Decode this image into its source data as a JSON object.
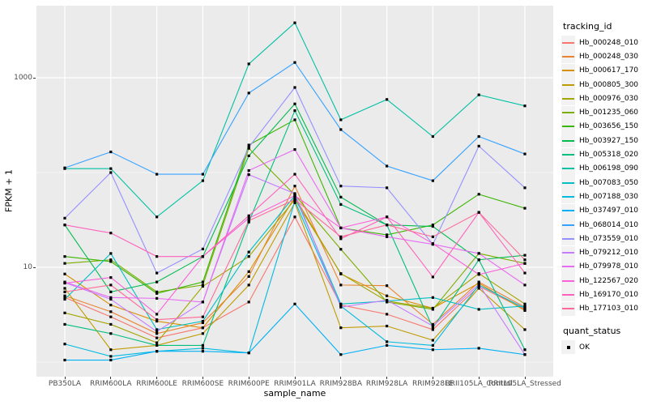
{
  "chart_data": {
    "type": "line",
    "title": "",
    "xlabel": "sample_name",
    "ylabel": "FPKM + 1",
    "y_scale": "log10",
    "y_axis_tick_labels": [
      "10",
      "1000"
    ],
    "y_axis_tick_values": [
      10,
      1000
    ],
    "y_gridlines_major": [
      10,
      1000
    ],
    "y_gridlines_minor": [
      1,
      100
    ],
    "ylim": [
      0.7,
      5750
    ],
    "grid": true,
    "legend_position": "right",
    "categories": [
      "PB350LA",
      "RRIM600LA",
      "RRIM600LE",
      "RRIM600SE",
      "RRIM600PE",
      "RRIM901LA",
      "RRIM928BA",
      "RRIM928LA",
      "RRIM928LE",
      "RRII105LA_Control",
      "RRII105LA_Stressed"
    ],
    "series": [
      {
        "name": "Hb_000248_010",
        "color": "#F8766D",
        "values": [
          4.8,
          3.0,
          1.8,
          2.3,
          4.3,
          34,
          4.0,
          3.2,
          2.2,
          6.3,
          3.6
        ]
      },
      {
        "name": "Hb_000248_030",
        "color": "#EA8331",
        "values": [
          5.0,
          3.4,
          2.0,
          2.6,
          8.0,
          72,
          6.5,
          6.4,
          2.5,
          7.0,
          3.8
        ]
      },
      {
        "name": "Hb_000617_170",
        "color": "#D89000",
        "values": [
          8.5,
          4.0,
          2.7,
          2.3,
          9.0,
          55,
          8.5,
          5.0,
          3.7,
          6.8,
          3.5
        ]
      },
      {
        "name": "Hb_000805_300",
        "color": "#C09B00",
        "values": [
          6.0,
          1.35,
          1.5,
          2.0,
          6.5,
          48,
          2.3,
          2.4,
          1.7,
          6.0,
          2.2
        ]
      },
      {
        "name": "Hb_000976_030",
        "color": "#A3A500",
        "values": [
          3.3,
          2.5,
          1.6,
          6.3,
          13,
          52,
          8.6,
          4.4,
          3.7,
          8.6,
          4.1
        ]
      },
      {
        "name": "Hb_001235_060",
        "color": "#7CAE00",
        "values": [
          11,
          12,
          5.5,
          6.5,
          180,
          58,
          15.5,
          4.3,
          3.6,
          14,
          11
        ]
      },
      {
        "name": "Hb_003656_150",
        "color": "#39B600",
        "values": [
          13,
          11.5,
          5.3,
          7.0,
          195,
          360,
          26,
          22,
          28,
          59,
          42
        ]
      },
      {
        "name": "Hb_003927_150",
        "color": "#00BB4E",
        "values": [
          28,
          5.5,
          7.0,
          13,
          150,
          530,
          55,
          28,
          27,
          12,
          13.4
        ]
      },
      {
        "name": "Hb_005318_020",
        "color": "#00BF7D",
        "values": [
          2.5,
          2.0,
          1.5,
          1.5,
          30,
          450,
          46,
          28,
          2.3,
          12,
          1.35
        ]
      },
      {
        "name": "Hb_006198_090",
        "color": "#00C1A3",
        "values": [
          110,
          110,
          34,
          82,
          1400,
          3800,
          360,
          590,
          240,
          660,
          505
        ]
      },
      {
        "name": "Hb_007083_050",
        "color": "#00BFC4",
        "values": [
          4.6,
          14,
          2.2,
          2.7,
          14.5,
          57,
          4.1,
          4.4,
          4.8,
          3.6,
          3.9
        ]
      },
      {
        "name": "Hb_007188_030",
        "color": "#00BAE0",
        "values": [
          1.55,
          1.15,
          1.3,
          1.4,
          1.25,
          50,
          3.9,
          1.64,
          1.5,
          6.5,
          3.7
        ]
      },
      {
        "name": "Hb_037497_010",
        "color": "#00B0F6",
        "values": [
          1.05,
          1.05,
          1.3,
          1.3,
          1.25,
          4.1,
          1.2,
          1.5,
          1.35,
          1.4,
          1.2
        ]
      },
      {
        "name": "Hb_068014_010",
        "color": "#35A2FF",
        "values": [
          112,
          165,
          96,
          96,
          690,
          1450,
          284,
          117,
          82,
          240,
          157
        ]
      },
      {
        "name": "Hb_073559_010",
        "color": "#9590FF",
        "values": [
          33,
          100,
          8.7,
          15.6,
          185,
          790,
          72,
          69,
          17.5,
          190,
          69
        ]
      },
      {
        "name": "Hb_079212_010",
        "color": "#C77CFF",
        "values": [
          6.9,
          4.6,
          2.1,
          4.3,
          95,
          60,
          3.8,
          4.5,
          2.4,
          6.6,
          1.2
        ]
      },
      {
        "name": "Hb_079978_010",
        "color": "#E76BF3",
        "values": [
          7.0,
          4.8,
          4.7,
          4.3,
          105,
          175,
          26,
          21,
          17.5,
          14,
          6.5
        ]
      },
      {
        "name": "Hb_122567_020",
        "color": "#FA62DB",
        "values": [
          6.8,
          7.8,
          3.2,
          13,
          33,
          57,
          26,
          34,
          17.8,
          8.4,
          11
        ]
      },
      {
        "name": "Hb_169170_010",
        "color": "#FF62BC",
        "values": [
          28,
          23,
          13,
          13,
          35,
          96,
          20,
          34,
          7.9,
          38,
          8.7
        ]
      },
      {
        "name": "Hb_177103_010",
        "color": "#FF6A98",
        "values": [
          5.5,
          6.5,
          2.8,
          3.0,
          31,
          52,
          21,
          28,
          21,
          38,
          12
        ]
      }
    ],
    "legend": {
      "color_title": "tracking_id",
      "shape_title": "quant_status",
      "shape_items": [
        {
          "label": "OK",
          "marker": "black-square"
        }
      ]
    },
    "point_marker": {
      "shape": "square",
      "color": "#000000"
    }
  },
  "colors": {
    "panel_bg": "#EBEBEB",
    "gridline": "#FFFFFF",
    "tick_label": "#4D4D4D",
    "axis_title": "#000000",
    "legend_key_bg": "#F2F2F2",
    "point": "#000000"
  }
}
